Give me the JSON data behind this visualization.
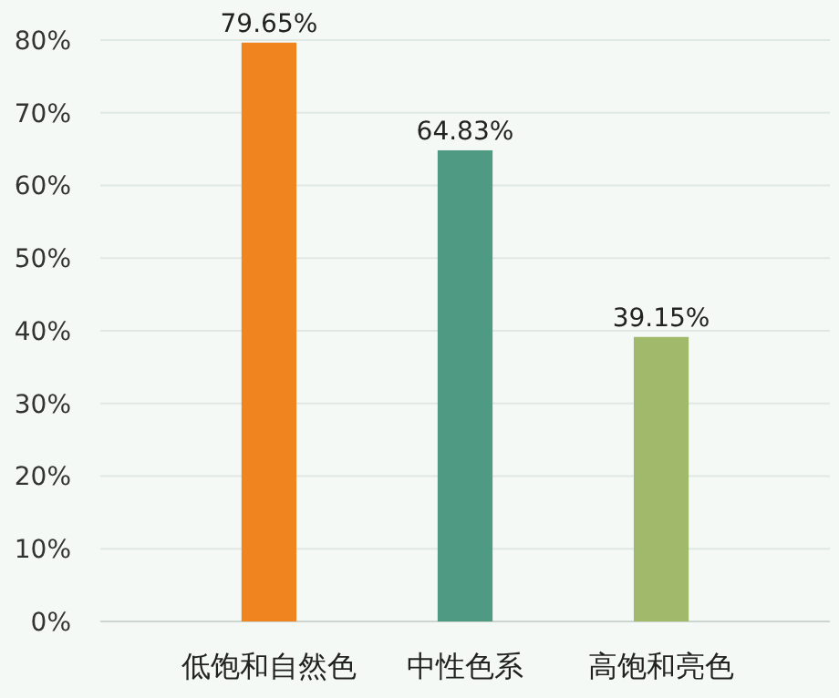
{
  "chart_data": {
    "type": "bar",
    "categories": [
      "低饱和自然色",
      "中性色系",
      "高饱和亮色"
    ],
    "values": [
      79.65,
      64.83,
      39.15
    ],
    "colors": [
      "#f0841e",
      "#4e9a82",
      "#a0b96a"
    ],
    "value_labels": [
      "79.65%",
      "64.83%",
      "39.15%"
    ],
    "ylim": [
      0,
      80
    ],
    "yticks": [
      {
        "value": 0,
        "label": "0%"
      },
      {
        "value": 10,
        "label": "10%"
      },
      {
        "value": 20,
        "label": "20%"
      },
      {
        "value": 30,
        "label": "30%"
      },
      {
        "value": 40,
        "label": "40%"
      },
      {
        "value": 50,
        "label": "50%"
      },
      {
        "value": 60,
        "label": "60%"
      },
      {
        "value": 70,
        "label": "70%"
      },
      {
        "value": 80,
        "label": "80%"
      }
    ],
    "grid": "y"
  }
}
